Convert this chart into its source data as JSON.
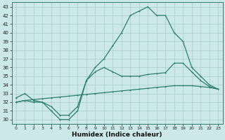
{
  "xlabel": "Humidex (Indice chaleur)",
  "bg_color": "#cce8e8",
  "line_color": "#2e7d6e",
  "grid_color": "#aacccc",
  "xlim": [
    -0.5,
    23.5
  ],
  "ylim": [
    29.5,
    43.5
  ],
  "xticks": [
    0,
    1,
    2,
    3,
    4,
    5,
    6,
    7,
    8,
    9,
    10,
    11,
    12,
    13,
    14,
    15,
    16,
    17,
    18,
    19,
    20,
    21,
    22,
    23
  ],
  "yticks": [
    30,
    31,
    32,
    33,
    34,
    35,
    36,
    37,
    38,
    39,
    40,
    41,
    42,
    43
  ],
  "series1_x": [
    0,
    1,
    2,
    3,
    4,
    5,
    6,
    7,
    8,
    9,
    10,
    11,
    12,
    13,
    14,
    15,
    16,
    17,
    18,
    19,
    20,
    21,
    22,
    23
  ],
  "series1_y": [
    32.0,
    32.2,
    32.3,
    32.4,
    32.5,
    32.6,
    32.7,
    32.8,
    32.9,
    33.0,
    33.1,
    33.2,
    33.3,
    33.4,
    33.5,
    33.6,
    33.7,
    33.8,
    33.9,
    33.9,
    33.9,
    33.8,
    33.7,
    33.5
  ],
  "series2_x": [
    0,
    1,
    2,
    3,
    4,
    5,
    6,
    7,
    8,
    9,
    10,
    11,
    12,
    13,
    14,
    15,
    16,
    17,
    18,
    19,
    20,
    21,
    22,
    23
  ],
  "series2_y": [
    32.0,
    32.2,
    32.0,
    32.0,
    31.5,
    30.5,
    30.5,
    31.5,
    34.5,
    35.5,
    36.0,
    35.5,
    35.0,
    35.0,
    35.0,
    35.2,
    35.3,
    35.4,
    36.5,
    36.5,
    35.5,
    34.5,
    33.8,
    33.5
  ],
  "series3_x": [
    0,
    1,
    2,
    3,
    4,
    5,
    6,
    7,
    8,
    9,
    10,
    11,
    12,
    13,
    14,
    15,
    16,
    17,
    18,
    19,
    20,
    21,
    22,
    23
  ],
  "series3_y": [
    32.5,
    33.0,
    32.2,
    32.0,
    31.0,
    30.0,
    30.0,
    31.0,
    34.5,
    36.0,
    37.0,
    38.5,
    40.0,
    42.0,
    42.5,
    43.0,
    42.0,
    42.0,
    40.0,
    39.0,
    36.0,
    35.0,
    34.0,
    33.5
  ]
}
